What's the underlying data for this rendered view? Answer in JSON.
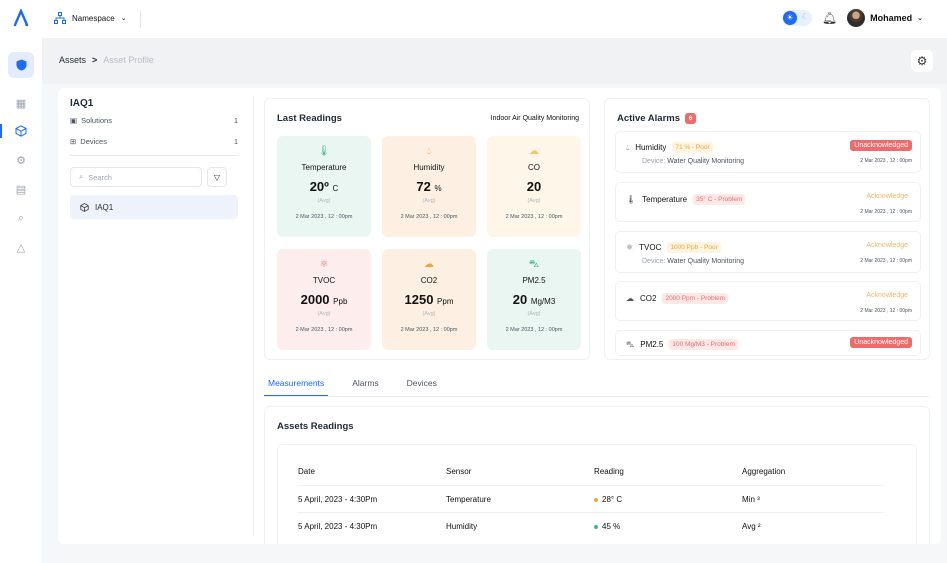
{
  "topbar": {
    "namespace_label": "Namespace",
    "user_name": "Mohamed"
  },
  "breadcrumb": {
    "root": "Assets",
    "separator": ">",
    "current": "Asset Profile"
  },
  "asset_panel": {
    "title": "IAQ1",
    "solutions_label": "Solutions",
    "solutions_count": "1",
    "devices_label": "Devices",
    "devices_count": "1",
    "search_placeholder": "Search",
    "tree_item": "IAQ1"
  },
  "readings": {
    "title": "Last Readings",
    "subtitle": "Indoor Air Quality Monitoring",
    "tiles": [
      {
        "name": "Temperature",
        "value": "20º",
        "unit": "C",
        "avg": "(Avg)",
        "time": "2 Mar 2023 , 12 : 00pm",
        "bg": "#eaf6f1",
        "icon": "thermometer-icon",
        "icon_color": "#3bb58f"
      },
      {
        "name": "Humidity",
        "value": "72",
        "unit": "%",
        "avg": "(Avg)",
        "time": "2 Mar 2023 , 12 : 00pm",
        "bg": "#fdf0e3",
        "icon": "droplet-icon",
        "icon_color": "#f2a33a"
      },
      {
        "name": "CO",
        "value": "20",
        "unit": "",
        "avg": "(Avg)",
        "time": "2 Mar 2023 , 12 : 00pm",
        "bg": "#fdf6e9",
        "icon": "cloud-icon",
        "icon_color": "#f5c36a"
      },
      {
        "name": "TVOC",
        "value": "2000",
        "unit": "Ppb",
        "avg": "(Avg)",
        "time": "2 Mar 2023 , 12 : 00pm",
        "bg": "#fdeded",
        "icon": "molecule-icon",
        "icon_color": "#ef6b6b"
      },
      {
        "name": "CO2",
        "value": "1250",
        "unit": "Ppm",
        "avg": "(Avg)",
        "time": "2 Mar 2023 , 12 : 00pm",
        "bg": "#fdf0e3",
        "icon": "co2-icon",
        "icon_color": "#f2a33a"
      },
      {
        "name": "PM2.5",
        "value": "20",
        "unit": "Mg/M3",
        "avg": "(Avg)",
        "time": "2 Mar 2023 , 12 : 00pm",
        "bg": "#eaf6f1",
        "icon": "car-icon",
        "icon_color": "#3bb58f"
      }
    ]
  },
  "alarms": {
    "title": "Active Alarms",
    "count": "6",
    "items": [
      {
        "name": "Humidity",
        "tag": "71 % - Poor",
        "tag_type": "poor",
        "device_label": "Device:",
        "device": "Water Quality Monitoring",
        "action": "Unacknowledged",
        "action_type": "unack",
        "time": "2 Mar 2023 , 12 : 00pm",
        "icon": "droplet-icon"
      },
      {
        "name": "Temperature",
        "tag": "35° C - Problem",
        "tag_type": "prob",
        "device_label": "",
        "device": "",
        "action": "Acknowledge",
        "action_type": "ack",
        "time": "2 Mar 2023 , 12 : 00pm",
        "icon": "thermometer-icon"
      },
      {
        "name": "TVOC",
        "tag": "1000 Ppb - Poor",
        "tag_type": "poor",
        "device_label": "Device:",
        "device": "Water Quality Monitoring",
        "action": "Acknowledge",
        "action_type": "ack",
        "time": "2 Mar 2023 , 12 : 00pm",
        "icon": "molecule-icon"
      },
      {
        "name": "CO2",
        "tag": "2000 Ppm - Problem",
        "tag_type": "prob",
        "device_label": "",
        "device": "",
        "action": "Acknowledge",
        "action_type": "ack",
        "time": "2 Mar 2023 , 12 : 00pm",
        "icon": "co2-icon"
      },
      {
        "name": "PM2.5",
        "tag": "100 Mg/M3 - Problem",
        "tag_type": "prob",
        "device_label": "",
        "device": "",
        "action": "Unacknowledged",
        "action_type": "unack",
        "time": "",
        "icon": "car-icon"
      }
    ]
  },
  "tabs": [
    "Measurements",
    "Alarms",
    "Devices"
  ],
  "table": {
    "title": "Assets Readings",
    "headers": [
      "Date",
      "Sensor",
      "Reading",
      "Aggregation"
    ],
    "rows": [
      {
        "date": "5 April, 2023 - 4:30Pm",
        "sensor": "Temperature",
        "reading": "28° C",
        "dot": "#f2a33a",
        "aggregation": "Min ³"
      },
      {
        "date": "5 April, 2023 - 4:30Pm",
        "sensor": "Humidity",
        "reading": "45 %",
        "dot": "#3bb58f",
        "aggregation": "Avg ²"
      }
    ]
  }
}
